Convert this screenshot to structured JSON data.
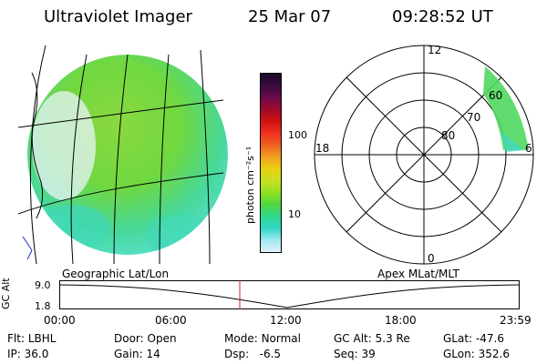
{
  "header": {
    "instrument": "Ultraviolet Imager",
    "date": "25 Mar 07",
    "time": "09:28:52 UT"
  },
  "map_labels": {
    "geo": "Geographic Lat/Lon",
    "apex": "Apex MLat/MLT"
  },
  "colorbar": {
    "unit_label": "photon cm⁻²s⁻¹",
    "ticks": [
      "100",
      "10"
    ],
    "colors": [
      "#1a0a28",
      "#3a0a3c",
      "#6a0a4a",
      "#a00a2a",
      "#d01010",
      "#f03020",
      "#f06020",
      "#f0a020",
      "#e8d010",
      "#c8e020",
      "#90e020",
      "#50d840",
      "#30d890",
      "#30d8c8",
      "#a0e8f0",
      "#e0f0f8"
    ]
  },
  "polar": {
    "mlt_labels": [
      "12",
      "18",
      "6",
      "0"
    ],
    "mlat_labels": [
      "60",
      "70",
      "80"
    ]
  },
  "altitude_plot": {
    "ylabel": "GC Alt",
    "yticks": [
      "9.0",
      "1.8"
    ],
    "xticks": [
      "00:00",
      "06:00",
      "12:00",
      "18:00",
      "23:59"
    ],
    "marker_time": "09:28",
    "marker_color": "#d02020"
  },
  "info": {
    "row1": [
      {
        "label": "Flt:",
        "value": "LBHL"
      },
      {
        "label": "Door:",
        "value": "Open"
      },
      {
        "label": "Mode:",
        "value": "Normal"
      },
      {
        "label": "GC Alt:",
        "value": "5.3 Re"
      },
      {
        "label": "GLat:",
        "value": "-47.6"
      }
    ],
    "row2": [
      {
        "label": "IP:",
        "value": "36.0"
      },
      {
        "label": "Gain:",
        "value": "14"
      },
      {
        "label": "Dsp:",
        "value": "-6.5"
      },
      {
        "label": "Seq:",
        "value": "39"
      },
      {
        "label": "GLon:",
        "value": "352.6"
      }
    ]
  }
}
